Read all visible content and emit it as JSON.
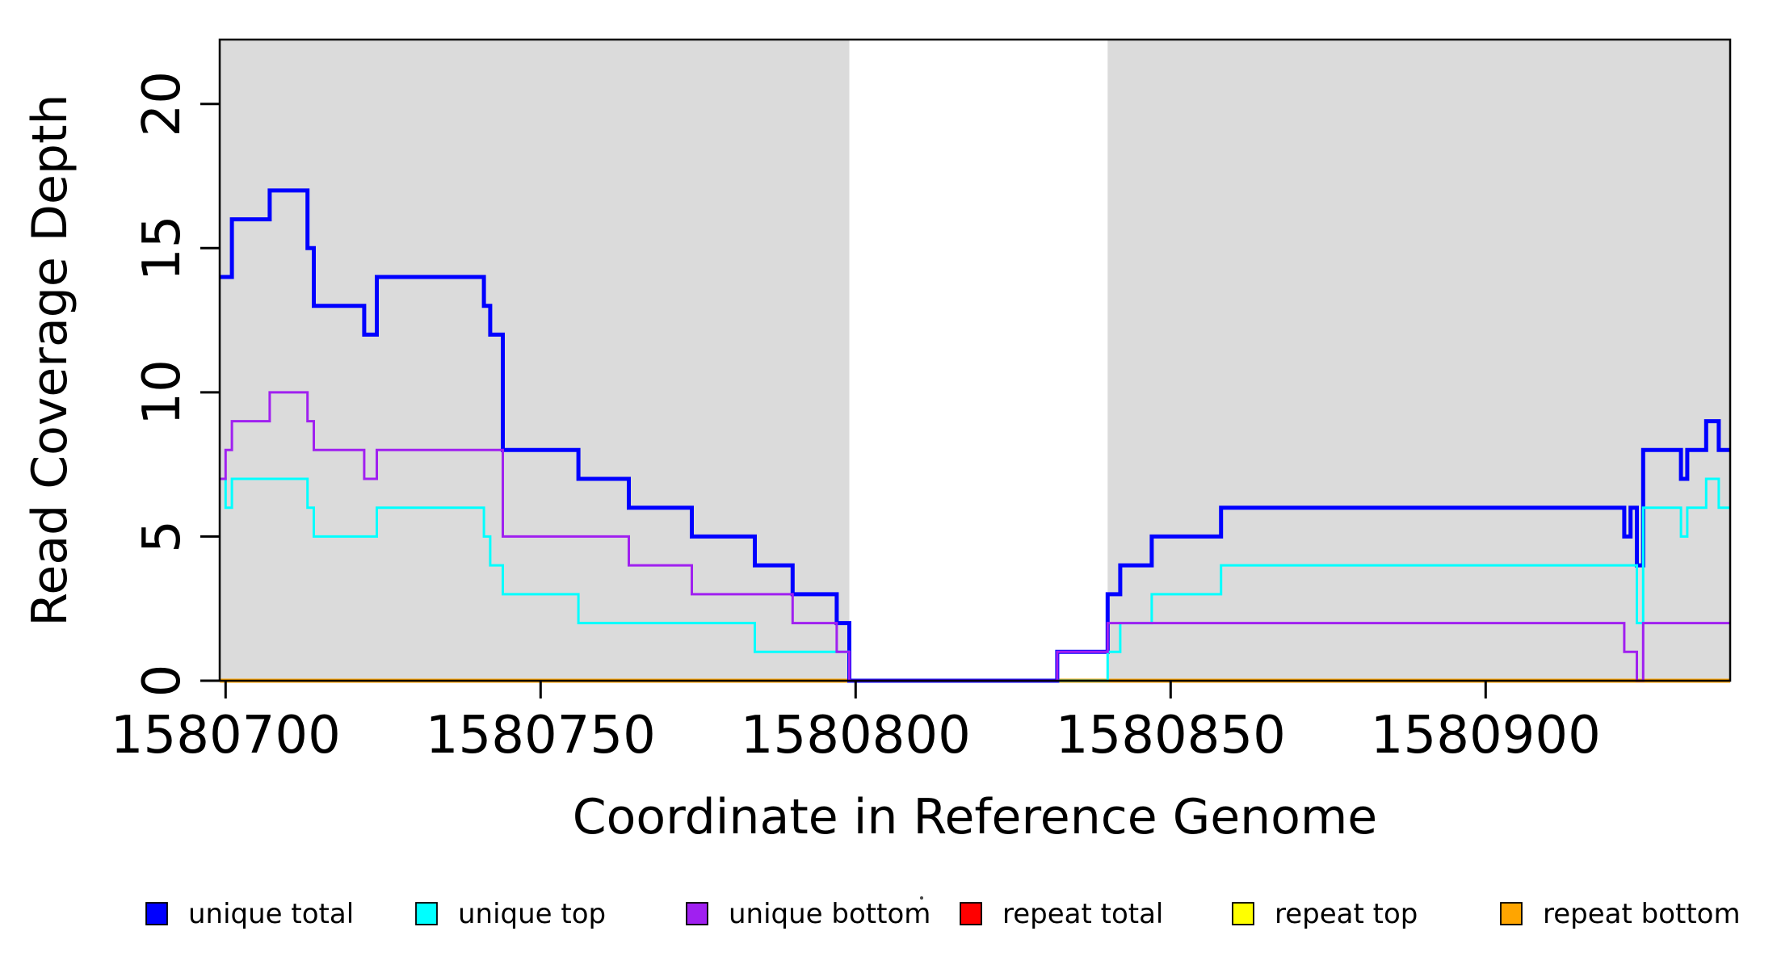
{
  "chart_data": {
    "type": "line",
    "subtype": "step-coverage-plot",
    "title": "",
    "xlabel": "Coordinate in Reference Genome",
    "ylabel": "Read Coverage Depth",
    "x_ticks": [
      1580700,
      1580750,
      1580800,
      1580850,
      1580900
    ],
    "y_ticks": [
      0,
      5,
      10,
      15,
      20
    ],
    "x_range": [
      1580699.1,
      1580938.85
    ],
    "y_range": [
      0,
      22.26
    ],
    "grid": false,
    "background_color": "#ffffff",
    "shaded_region_color": "#DBDBDB",
    "shaded_regions": [
      {
        "from": 1580699.1,
        "to": 1580799,
        "label": "left-gray-region"
      },
      {
        "from": 1580840,
        "to": 1580938.85,
        "label": "right-gray-region"
      }
    ],
    "x_end": 1580938.85,
    "series": [
      {
        "name": "repeat total",
        "color": "#FF0000",
        "width": 4,
        "steps": [
          [
            1580699.1,
            0
          ]
        ]
      },
      {
        "name": "repeat top",
        "color": "#FFFF00",
        "width": 4,
        "steps": [
          [
            1580699.1,
            0
          ]
        ]
      },
      {
        "name": "repeat bottom",
        "color": "#FFA500",
        "width": 5,
        "steps": [
          [
            1580699.1,
            0
          ]
        ]
      },
      {
        "name": "unique total",
        "color": "#0000FF",
        "width": 5,
        "steps": [
          [
            1580699.1,
            14
          ],
          [
            1580701,
            16
          ],
          [
            1580707,
            17
          ],
          [
            1580713,
            15
          ],
          [
            1580714,
            13
          ],
          [
            1580722,
            12
          ],
          [
            1580724,
            14
          ],
          [
            1580741,
            13
          ],
          [
            1580742,
            12
          ],
          [
            1580744,
            8
          ],
          [
            1580756,
            7
          ],
          [
            1580764,
            6
          ],
          [
            1580774,
            5
          ],
          [
            1580784,
            4
          ],
          [
            1580790,
            3
          ],
          [
            1580797,
            2
          ],
          [
            1580799,
            0
          ],
          [
            1580832,
            1
          ],
          [
            1580840,
            3
          ],
          [
            1580842,
            4
          ],
          [
            1580847,
            5
          ],
          [
            1580858,
            6
          ],
          [
            1580922,
            5
          ],
          [
            1580923,
            6
          ],
          [
            1580924,
            4
          ],
          [
            1580925,
            8
          ],
          [
            1580931,
            7
          ],
          [
            1580932,
            8
          ],
          [
            1580935,
            9
          ],
          [
            1580937,
            8
          ]
        ]
      },
      {
        "name": "unique top",
        "color": "#00FFFF",
        "width": 3,
        "steps": [
          [
            1580699.1,
            7
          ],
          [
            1580700,
            6
          ],
          [
            1580701,
            7
          ],
          [
            1580713,
            6
          ],
          [
            1580714,
            5
          ],
          [
            1580724,
            6
          ],
          [
            1580741,
            5
          ],
          [
            1580742,
            4
          ],
          [
            1580744,
            3
          ],
          [
            1580756,
            2
          ],
          [
            1580784,
            1
          ],
          [
            1580799,
            0
          ],
          [
            1580840,
            1
          ],
          [
            1580842,
            2
          ],
          [
            1580847,
            3
          ],
          [
            1580858,
            4
          ],
          [
            1580924,
            2
          ],
          [
            1580925,
            6
          ],
          [
            1580931,
            5
          ],
          [
            1580932,
            6
          ],
          [
            1580935,
            7
          ],
          [
            1580937,
            6
          ]
        ]
      },
      {
        "name": "unique bottom",
        "color": "#A020F0",
        "width": 3,
        "steps": [
          [
            1580699.1,
            7
          ],
          [
            1580700,
            8
          ],
          [
            1580701,
            9
          ],
          [
            1580707,
            10
          ],
          [
            1580713,
            9
          ],
          [
            1580714,
            8
          ],
          [
            1580722,
            7
          ],
          [
            1580724,
            8
          ],
          [
            1580744,
            5
          ],
          [
            1580764,
            4
          ],
          [
            1580774,
            3
          ],
          [
            1580790,
            2
          ],
          [
            1580797,
            1
          ],
          [
            1580799,
            0
          ],
          [
            1580832,
            1
          ],
          [
            1580840,
            2
          ],
          [
            1580922,
            1
          ],
          [
            1580924,
            0
          ],
          [
            1580925,
            2
          ]
        ]
      }
    ],
    "legend": {
      "position": "bottom",
      "entries": [
        {
          "label": "unique total",
          "color": "#0000FF"
        },
        {
          "label": "unique top",
          "color": "#00FFFF"
        },
        {
          "label": "unique bottom",
          "color": "#A020F0"
        },
        {
          "label": "repeat total",
          "color": "#FF0000"
        },
        {
          "label": "repeat top",
          "color": "#FFFF00"
        },
        {
          "label": "repeat bottom",
          "color": "#FFA500"
        }
      ]
    }
  }
}
